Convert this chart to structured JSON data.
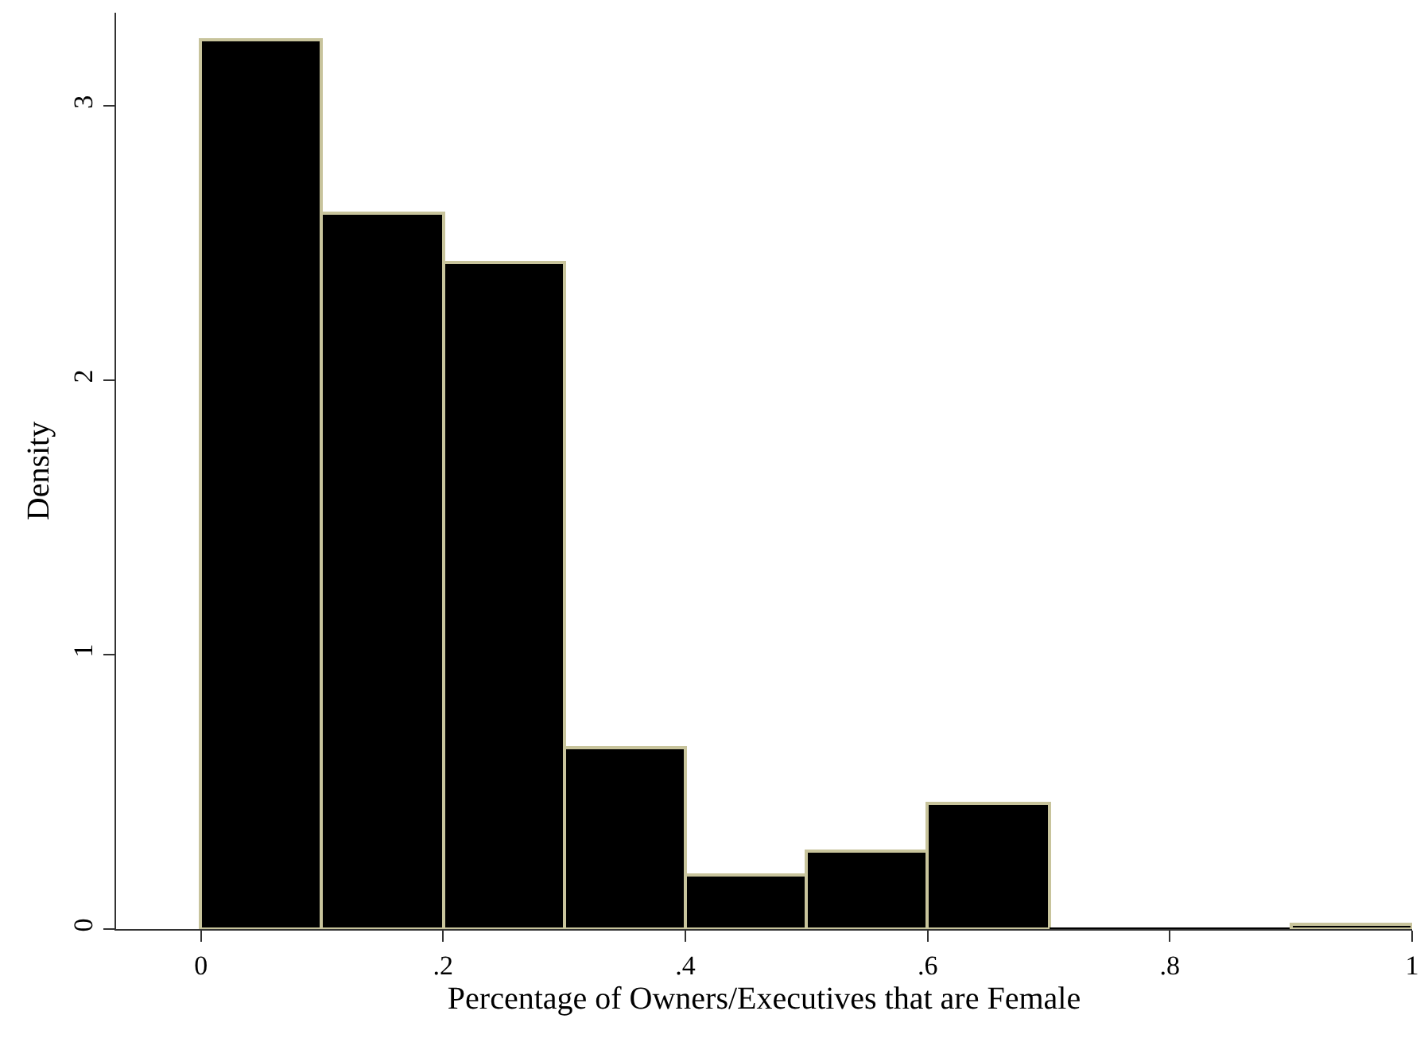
{
  "chart_data": {
    "type": "histogram",
    "xlabel": "Percentage of Owners/Executives that are Female",
    "ylabel": "Density",
    "bins": [
      0,
      0.1,
      0.2,
      0.3,
      0.4,
      0.5,
      0.6,
      0.7,
      0.8,
      0.9,
      1
    ],
    "values": [
      3.24,
      2.61,
      2.43,
      0.66,
      0.2,
      0.285,
      0.46,
      0,
      0,
      0.02
    ],
    "color": "#000000",
    "xlim": [
      -0.07,
      1
    ],
    "xticks": [
      {
        "value": 0,
        "label": "0"
      },
      {
        "value": 0.2,
        "label": ".2"
      },
      {
        "value": 0.4,
        "label": ".4"
      },
      {
        "value": 0.6,
        "label": ".6"
      },
      {
        "value": 0.8,
        "label": ".8"
      },
      {
        "value": 1,
        "label": "1"
      }
    ],
    "ylim": [
      0,
      3.34
    ],
    "yticks": [
      0,
      1,
      2,
      3
    ]
  }
}
